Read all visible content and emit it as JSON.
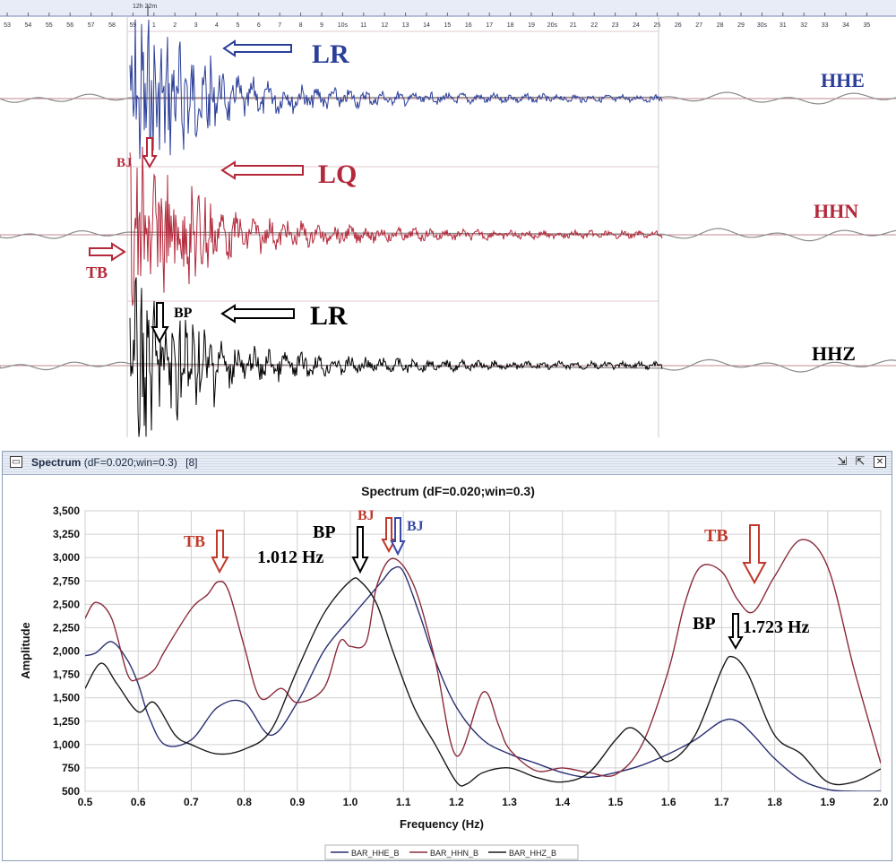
{
  "seismogram": {
    "time_header": {
      "start_label": "12h 22m",
      "ticks": [
        "53",
        "54",
        "55",
        "56",
        "57",
        "58",
        "59",
        "1",
        "2",
        "3",
        "4",
        "5",
        "6",
        "7",
        "8",
        "9",
        "10s",
        "11",
        "12",
        "13",
        "14",
        "15",
        "16",
        "17",
        "18",
        "19",
        "20s",
        "21",
        "22",
        "23",
        "24",
        "25",
        "26",
        "27",
        "28",
        "29",
        "30s",
        "31",
        "32",
        "33",
        "34",
        "35"
      ]
    },
    "traces": [
      {
        "name": "HHE",
        "color": "#2b3f9a"
      },
      {
        "name": "HHN",
        "color": "#b3283a"
      },
      {
        "name": "HHZ",
        "color": "#000000"
      }
    ],
    "annotations": {
      "lr_top": "LR",
      "lq": "LQ",
      "lr_bottom": "LR",
      "bj": "BJ",
      "tb": "TB",
      "bp": "BP"
    }
  },
  "spectrum_window": {
    "title": "Spectrum",
    "title_detail": "(dF=0.020;win=0.3)",
    "count": "[8]"
  },
  "chart_data": {
    "type": "line",
    "title": "Spectrum (dF=0.020;win=0.3)",
    "xlabel": "Frequency (Hz)",
    "ylabel": "Amplitude",
    "xlim": [
      0.5,
      2.0
    ],
    "ylim": [
      500,
      3500
    ],
    "x_ticks": [
      "0.5",
      "0.6",
      "0.7",
      "0.8",
      "0.9",
      "1.0",
      "1.1",
      "1.2",
      "1.3",
      "1.4",
      "1.5",
      "1.6",
      "1.7",
      "1.8",
      "1.9",
      "2.0"
    ],
    "y_ticks": [
      "500",
      "750",
      "1,000",
      "1,250",
      "1,500",
      "1,750",
      "2,000",
      "2,250",
      "2,500",
      "2,750",
      "3,000",
      "3,250",
      "3,500"
    ],
    "grid": true,
    "legend_position": "bottom",
    "series": [
      {
        "name": "BAR_HHE_B",
        "color": "#2a2f73",
        "x": [
          0.5,
          0.52,
          0.55,
          0.58,
          0.6,
          0.62,
          0.65,
          0.7,
          0.75,
          0.8,
          0.85,
          0.9,
          0.95,
          1.0,
          1.03,
          1.06,
          1.08,
          1.1,
          1.13,
          1.16,
          1.2,
          1.25,
          1.3,
          1.35,
          1.4,
          1.45,
          1.5,
          1.55,
          1.6,
          1.65,
          1.7,
          1.73,
          1.76,
          1.8,
          1.85,
          1.9,
          1.95,
          2.0
        ],
        "y": [
          1950,
          1980,
          2100,
          1900,
          1650,
          1300,
          1000,
          1050,
          1400,
          1450,
          1100,
          1450,
          2000,
          2350,
          2550,
          2750,
          2880,
          2850,
          2400,
          1900,
          1400,
          1050,
          900,
          800,
          700,
          650,
          700,
          780,
          900,
          1050,
          1250,
          1250,
          1100,
          850,
          620,
          520,
          500,
          480
        ]
      },
      {
        "name": "BAR_HHN_B",
        "color": "#8a2b3c",
        "x": [
          0.5,
          0.52,
          0.55,
          0.58,
          0.6,
          0.63,
          0.65,
          0.7,
          0.73,
          0.75,
          0.77,
          0.8,
          0.83,
          0.87,
          0.9,
          0.95,
          0.98,
          1.0,
          1.03,
          1.05,
          1.08,
          1.12,
          1.16,
          1.2,
          1.25,
          1.28,
          1.3,
          1.35,
          1.4,
          1.45,
          1.5,
          1.55,
          1.6,
          1.63,
          1.66,
          1.7,
          1.73,
          1.76,
          1.8,
          1.85,
          1.9,
          1.95,
          2.0
        ],
        "y": [
          2350,
          2520,
          2350,
          1750,
          1700,
          1800,
          2000,
          2450,
          2600,
          2740,
          2650,
          2050,
          1500,
          1600,
          1450,
          1600,
          2100,
          2050,
          2100,
          2700,
          2990,
          2700,
          1900,
          880,
          1560,
          1200,
          950,
          720,
          750,
          700,
          680,
          1000,
          1800,
          2500,
          2900,
          2850,
          2550,
          2420,
          2800,
          3190,
          2900,
          1800,
          800
        ]
      },
      {
        "name": "BAR_HHZ_B",
        "color": "#1a1a1a",
        "x": [
          0.5,
          0.53,
          0.56,
          0.6,
          0.63,
          0.67,
          0.7,
          0.75,
          0.8,
          0.85,
          0.9,
          0.95,
          1.0,
          1.02,
          1.05,
          1.08,
          1.12,
          1.16,
          1.2,
          1.22,
          1.25,
          1.3,
          1.35,
          1.4,
          1.45,
          1.5,
          1.53,
          1.57,
          1.6,
          1.65,
          1.7,
          1.72,
          1.75,
          1.8,
          1.85,
          1.9,
          1.95,
          2.0
        ],
        "y": [
          1600,
          1870,
          1650,
          1350,
          1450,
          1100,
          1000,
          900,
          950,
          1150,
          1800,
          2400,
          2750,
          2740,
          2500,
          2000,
          1400,
          1000,
          600,
          580,
          700,
          750,
          650,
          600,
          700,
          1050,
          1180,
          980,
          820,
          1100,
          1800,
          1940,
          1750,
          1100,
          900,
          600,
          600,
          740
        ]
      }
    ],
    "annotations": [
      {
        "text": "TB",
        "color": "#c0392b"
      },
      {
        "text": "BP",
        "color": "#000000"
      },
      {
        "text": "1.012 Hz",
        "color": "#000000"
      },
      {
        "text": "BJ",
        "color": "#c0392b"
      },
      {
        "text": "BJ",
        "color": "#3a4aa8"
      },
      {
        "text": "TB",
        "color": "#c0392b"
      },
      {
        "text": "BP",
        "color": "#000000"
      },
      {
        "text": "1.723 Hz",
        "color": "#000000"
      }
    ]
  }
}
